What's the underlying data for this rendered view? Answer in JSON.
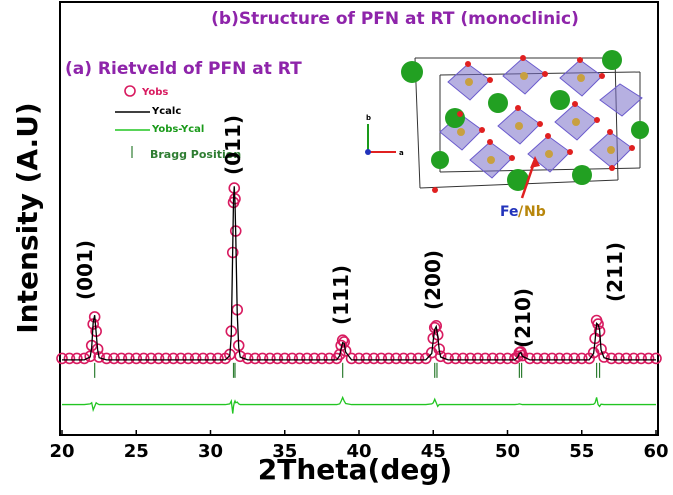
{
  "chart_data": {
    "type": "line",
    "title": "(b)Structure of PFN at RT (monoclinic)",
    "subtitle": "(a) Rietveld of PFN at RT",
    "x_label": "2Theta(deg)",
    "y_label": "Intensity (A.U)",
    "xlim": [
      20,
      60
    ],
    "xticks": [
      20,
      25,
      30,
      35,
      40,
      45,
      50,
      55,
      60
    ],
    "ylim": [
      -21,
      100
    ],
    "x": [
      20,
      20.5,
      21,
      21.5,
      21.9,
      22.0,
      22.1,
      22.2,
      22.3,
      22.4,
      22.5,
      23,
      23.5,
      24,
      24.5,
      25,
      25.5,
      26,
      26.5,
      27,
      27.5,
      28,
      28.5,
      29,
      29.5,
      30,
      30.5,
      31,
      31.3,
      31.4,
      31.5,
      31.55,
      31.6,
      31.65,
      31.7,
      31.8,
      31.9,
      32.0,
      32.5,
      33,
      33.5,
      34,
      34.5,
      35,
      35.5,
      36,
      36.5,
      37,
      37.5,
      38,
      38.5,
      38.7,
      38.8,
      38.9,
      39.0,
      39.1,
      39.5,
      40,
      40.5,
      41,
      41.5,
      42,
      42.5,
      43,
      43.5,
      44,
      44.5,
      44.9,
      45.0,
      45.1,
      45.2,
      45.3,
      45.4,
      45.5,
      46,
      46.5,
      47,
      47.5,
      48,
      48.5,
      49,
      49.5,
      50,
      50.5,
      50.7,
      50.8,
      50.9,
      51.0,
      51.5,
      52,
      52.5,
      53,
      53.5,
      54,
      54.5,
      55,
      55.5,
      55.8,
      55.9,
      56.0,
      56.1,
      56.2,
      56.3,
      56.5,
      57,
      57.5,
      58,
      58.5,
      59,
      59.5,
      60
    ],
    "series": [
      {
        "name": "Yobs",
        "type": "scatter",
        "color": "#d81b60",
        "values": [
          0.4,
          0.4,
          0.4,
          0.4,
          1,
          4,
          10,
          12,
          8,
          3,
          0.8,
          0.4,
          0.4,
          0.4,
          0.4,
          0.4,
          0.4,
          0.4,
          0.4,
          0.4,
          0.4,
          0.4,
          0.4,
          0.4,
          0.4,
          0.4,
          0.4,
          0.4,
          1.5,
          8,
          30,
          44,
          48,
          45,
          36,
          14,
          4,
          1,
          0.4,
          0.4,
          0.4,
          0.4,
          0.4,
          0.4,
          0.4,
          0.4,
          0.4,
          0.4,
          0.4,
          0.4,
          0.4,
          1.5,
          4,
          5.5,
          5,
          2.5,
          0.4,
          0.4,
          0.4,
          0.4,
          0.4,
          0.4,
          0.4,
          0.4,
          0.4,
          0.4,
          0.4,
          2,
          6,
          9,
          9.5,
          7,
          3,
          1,
          0.4,
          0.4,
          0.4,
          0.4,
          0.4,
          0.4,
          0.4,
          0.4,
          0.4,
          0.4,
          1,
          2,
          2.2,
          1.2,
          0.4,
          0.4,
          0.4,
          0.4,
          0.4,
          0.4,
          0.4,
          0.4,
          0.4,
          2,
          6,
          11,
          10,
          8,
          3,
          0.8,
          0.4,
          0.4,
          0.4,
          0.4,
          0.4,
          0.4,
          0.4
        ]
      },
      {
        "name": "Ycalc",
        "type": "line",
        "color": "#000000",
        "values": [
          0,
          0,
          0,
          0,
          0.8,
          3.5,
          10.5,
          12.5,
          7.5,
          2.8,
          0.6,
          0,
          0,
          0,
          0,
          0,
          0,
          0,
          0,
          0,
          0,
          0,
          0,
          0,
          0,
          0,
          0,
          0,
          1.2,
          7,
          32,
          45,
          48.5,
          44,
          35,
          13,
          3.5,
          0.8,
          0,
          0,
          0,
          0,
          0,
          0,
          0,
          0,
          0,
          0,
          0,
          0,
          0,
          1.2,
          3.2,
          4.8,
          4.6,
          2.2,
          0,
          0,
          0,
          0,
          0,
          0,
          0,
          0,
          0,
          0,
          0,
          1.8,
          5.5,
          8.5,
          9.3,
          6.8,
          2.8,
          0.8,
          0,
          0,
          0,
          0,
          0,
          0,
          0,
          0,
          0,
          0,
          0.8,
          1.8,
          2,
          1,
          0,
          0,
          0,
          0,
          0,
          0,
          0,
          0,
          0,
          1.8,
          5.5,
          10.2,
          9.8,
          8.5,
          2.8,
          0.6,
          0,
          0,
          0,
          0,
          0,
          0,
          0
        ]
      },
      {
        "name": "Yobs-Ycal",
        "type": "line",
        "color": "#22c522",
        "values": [
          -12.5,
          -12.5,
          -12.5,
          -12.5,
          -12.3,
          -12,
          -14,
          -13,
          -12,
          -12.3,
          -12.5,
          -12.5,
          -12.5,
          -12.5,
          -12.5,
          -12.5,
          -12.5,
          -12.5,
          -12.5,
          -12.5,
          -12.5,
          -12.5,
          -12.5,
          -12.5,
          -12.5,
          -12.5,
          -12.5,
          -12.5,
          -12.3,
          -11.5,
          -15,
          -13,
          -12,
          -11.5,
          -12,
          -11.8,
          -12.3,
          -12.5,
          -12.5,
          -12.5,
          -12.5,
          -12.5,
          -12.5,
          -12.5,
          -12.5,
          -12.5,
          -12.5,
          -12.5,
          -12.5,
          -12.5,
          -12.5,
          -12.3,
          -11.5,
          -10.5,
          -11.5,
          -12.2,
          -12.5,
          -12.5,
          -12.5,
          -12.5,
          -12.5,
          -12.5,
          -12.5,
          -12.5,
          -12.5,
          -12.5,
          -12.5,
          -12.3,
          -12,
          -11,
          -12,
          -13,
          -12.5,
          -12.5,
          -12.5,
          -12.5,
          -12.5,
          -12.5,
          -12.5,
          -12.5,
          -12.5,
          -12.5,
          -12.5,
          -12.5,
          -12.4,
          -12.3,
          -12.4,
          -12.5,
          -12.5,
          -12.5,
          -12.5,
          -12.5,
          -12.5,
          -12.5,
          -12.5,
          -12.5,
          -12.5,
          -12.4,
          -12,
          -10.5,
          -12.5,
          -13,
          -12.4,
          -12.5,
          -12.5,
          -12.5,
          -12.5,
          -12.5,
          -12.5,
          -12.5,
          -12.5
        ]
      }
    ],
    "bragg": {
      "name": "Bragg Position",
      "color": "#2e7d32",
      "x": [
        22.2,
        31.55,
        31.65,
        38.9,
        45.1,
        45.25,
        50.8,
        50.95,
        56.0,
        56.2
      ]
    },
    "annotations": [
      "(001)",
      "(011)",
      "(111)",
      "(200)",
      "(210)",
      "(211)"
    ],
    "inset_labels": [
      "Fe",
      "/",
      "Nb",
      "b",
      "a"
    ]
  }
}
